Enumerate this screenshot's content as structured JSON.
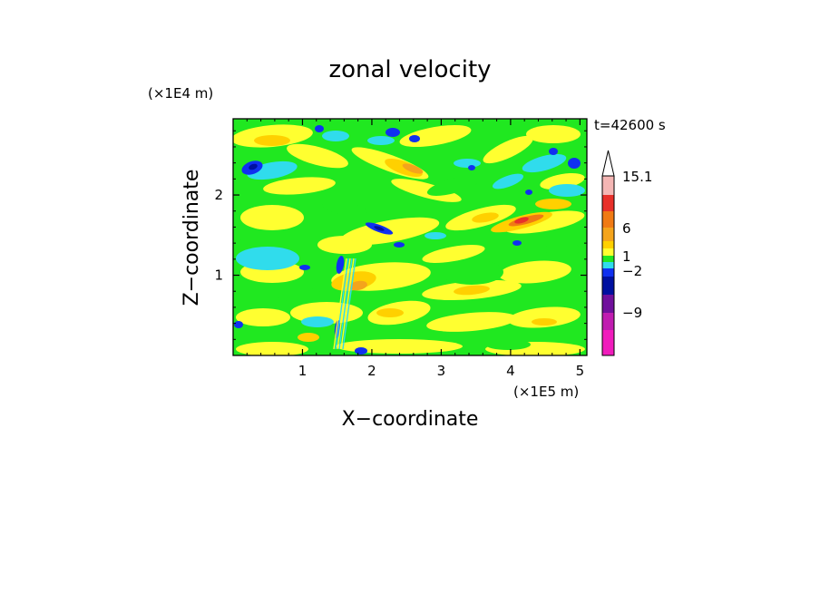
{
  "chart_data": {
    "type": "heatmap",
    "title": "zonal velocity",
    "time_label": "t=42600 s",
    "xlabel": "X−coordinate",
    "ylabel": "Z−coordinate",
    "x_multiplier": "(×1E5 m)",
    "y_multiplier": "(×1E4 m)",
    "xlim": [
      0,
      5.1
    ],
    "ylim": [
      0,
      2.95
    ],
    "xticks": [
      "1",
      "2",
      "3",
      "4",
      "5"
    ],
    "xtick_values": [
      1,
      2,
      3,
      4,
      5
    ],
    "yticks": [
      "1",
      "2"
    ],
    "ytick_values": [
      1,
      2
    ],
    "colorbar": {
      "labels": [
        "15.1",
        "6",
        "1",
        "−2",
        "−9"
      ],
      "label_values": [
        15.1,
        6,
        1,
        -2,
        -9
      ],
      "colors": [
        "#ffffff",
        "#f4b6b4",
        "#e8302a",
        "#f07a14",
        "#f4a41c",
        "#ffd000",
        "#ffff30",
        "#20e820",
        "#30dcec",
        "#1030f0",
        "#0010a0",
        "#70109c",
        "#c01cb0",
        "#f01cbc"
      ]
    },
    "note": "Contour field of zonal velocity; values approximate, dominated by yellow/green (about -2 to 1) with orange maxima up to ~6-15 near x=4.2-4.6, z=1.5 and blue minima near -2 to -9."
  }
}
